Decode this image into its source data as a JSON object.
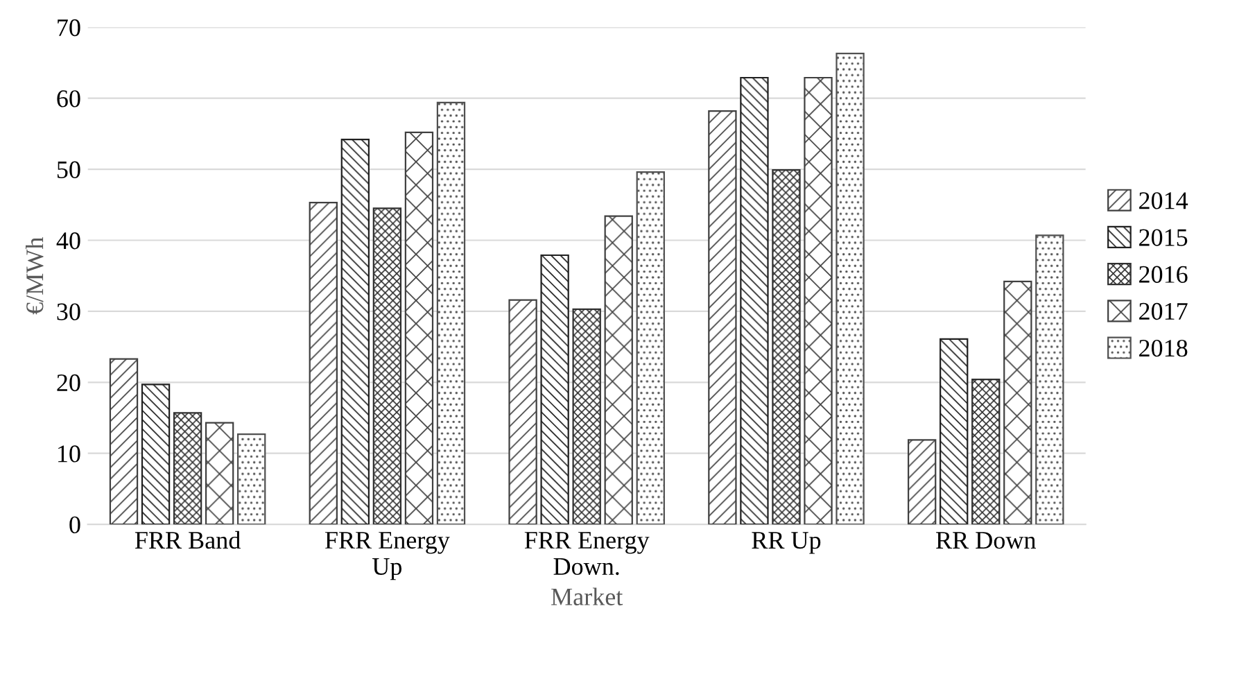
{
  "chart_data": {
    "type": "bar",
    "xlabel": "Market",
    "ylabel": "€/MWh",
    "categories": [
      "FRR Band",
      "FRR Energy\nUp",
      "FRR Energy\nDown.",
      "RR Up",
      "RR Down"
    ],
    "series": [
      {
        "name": "2014",
        "color": "#404040",
        "values": [
          23.3,
          45.3,
          31.6,
          58.2,
          11.9
        ]
      },
      {
        "name": "2015",
        "color": "#202020",
        "values": [
          19.7,
          54.2,
          37.9,
          62.9,
          26.1
        ]
      },
      {
        "name": "2016",
        "color": "#303030",
        "values": [
          15.7,
          44.5,
          30.3,
          49.9,
          20.4
        ]
      },
      {
        "name": "2017",
        "color": "#404040",
        "values": [
          14.3,
          55.2,
          43.4,
          62.9,
          34.2
        ]
      },
      {
        "name": "2018",
        "color": "#505050",
        "values": [
          12.7,
          59.4,
          49.6,
          66.3,
          40.7
        ]
      }
    ],
    "ylim": [
      0,
      70
    ],
    "yticks": [
      0,
      10,
      20,
      30,
      40,
      50,
      60,
      70
    ],
    "grid": "y",
    "legend": "right"
  }
}
